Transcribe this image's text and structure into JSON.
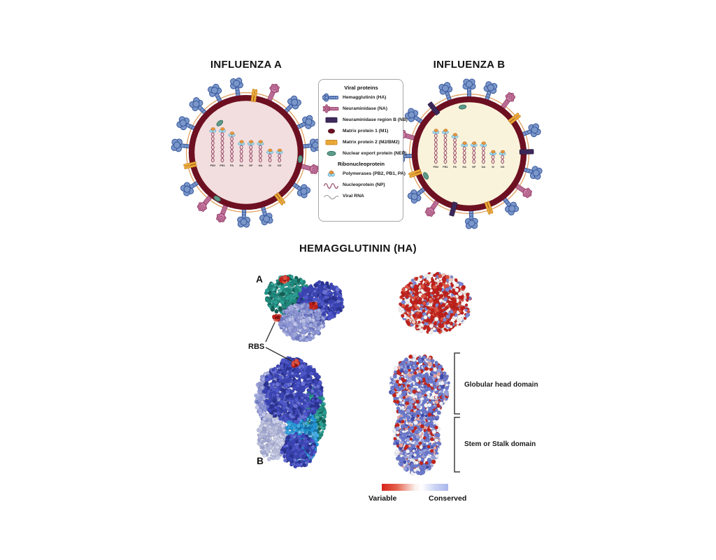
{
  "influenza_a": {
    "title": "INFLUENZA A",
    "segments": [
      "PB2",
      "PB1",
      "PA",
      "HA",
      "NP",
      "NA",
      "M",
      "NS"
    ]
  },
  "influenza_b": {
    "title": "INFLUENZA B",
    "segments": [
      "PB2",
      "PB1",
      "PA",
      "HA",
      "NP",
      "NA",
      "M",
      "NS"
    ]
  },
  "legend": {
    "header_viral": "Viral proteins",
    "items": [
      {
        "icon": "hemagglutinin-icon",
        "label": "Hemagglutinin (HA)"
      },
      {
        "icon": "neuraminidase-icon",
        "label": "Neuraminidase (NA)"
      },
      {
        "icon": "neuraminidase-region-b-icon",
        "label": "Neuraminidase region B (NB)"
      },
      {
        "icon": "matrix-protein-1-icon",
        "label": "Matrix protein 1 (M1)"
      },
      {
        "icon": "matrix-protein-2-icon",
        "label": "Matrix protein 2 (M2/BM2)"
      },
      {
        "icon": "nuclear-export-protein-icon",
        "label": "Nuclear export protein (NEP)"
      }
    ],
    "header_rnp": "Ribonucleoprotein",
    "rnp_items": [
      {
        "icon": "polymerases-icon",
        "label": "Polymerases (PB2, PB1, PA)"
      },
      {
        "icon": "nucleoprotein-icon",
        "label": "Nucleoprotein (NP)"
      },
      {
        "icon": "viral-rna-icon",
        "label": "Viral RNA"
      }
    ]
  },
  "ha_section": {
    "title": "HEMAGGLUTININ (HA)",
    "label_top_view": "A",
    "label_side_view": "B",
    "rbs_label": "RBS",
    "globular_head_label": "Globular head domain",
    "stem_label": "Stem or Stalk domain",
    "scale_left_label": "Variable",
    "scale_right_label": "Conserved"
  },
  "colors": {
    "membrane": "#6d1021",
    "lipid_ring": "#dd9a55",
    "interior_a": "#f2dede",
    "interior_b": "#faf3dc",
    "ha_fill": "#7b97c9",
    "ha_stroke": "#33539b",
    "na_fill": "#cb7fa6",
    "na_stroke": "#8f3a64",
    "nb_fill": "#463064",
    "nb_stroke": "#241640",
    "m2_fill": "#f2b33d",
    "m2_stroke": "#c8821e",
    "nep_fill": "#5e9c8c",
    "nep_stroke": "#39705f",
    "m1_fill": "#6d0f21",
    "poly_blue": "#9fd8ec",
    "poly_orange": "#e8963c",
    "rnp_strand": "#9b4f6e",
    "rna_gray": "#9a9a9a",
    "chain_teal": "#2a9d8f",
    "chain_royal": "#3a44b5",
    "chain_periwinkle": "#8d96d8",
    "chain_cyan": "#2196d9",
    "chain_lavender": "#b9bede",
    "variable_red": "#c4201a",
    "conserved_blue": "#8d9ae0",
    "surface_white": "#f2f0ed"
  }
}
